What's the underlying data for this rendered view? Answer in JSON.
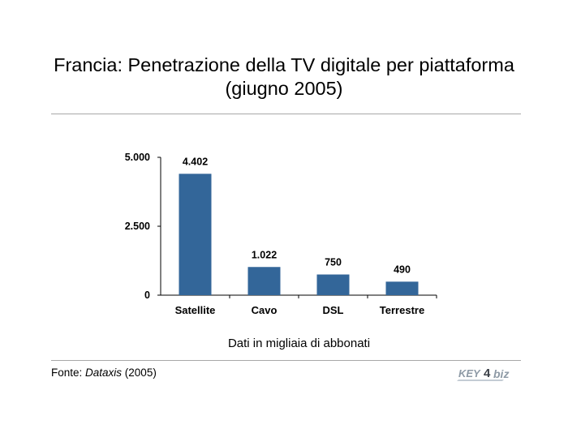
{
  "title": {
    "line1": "Francia: Penetrazione della TV digitale per piattaforma",
    "line2": "(giugno 2005)"
  },
  "chart_data": {
    "type": "bar",
    "title": "Francia: Penetrazione della TV digitale per piattaforma (giugno 2005)",
    "categories": [
      "Satellite",
      "Cavo",
      "DSL",
      "Terrestre"
    ],
    "values": [
      4402,
      1022,
      750,
      490
    ],
    "data_labels": [
      "4.402",
      "1.022",
      "750",
      "490"
    ],
    "yticks": [
      0,
      2500,
      5000
    ],
    "ytick_labels": [
      "0",
      "2.500",
      "5.000"
    ],
    "ylim": [
      0,
      5000
    ],
    "xlabel": "Dati in migliaia di abbonati",
    "ylabel": "",
    "grid": false,
    "bar_color": "#336699"
  },
  "note": "Dati in migliaia di abbonati",
  "source": {
    "prefix": "Fonte: ",
    "name": "Dataxis",
    "suffix": " (2005)"
  },
  "logo": {
    "text_key": "KEY",
    "text_num": "4",
    "text_biz": "biz",
    "color": "#8e9aa6"
  }
}
